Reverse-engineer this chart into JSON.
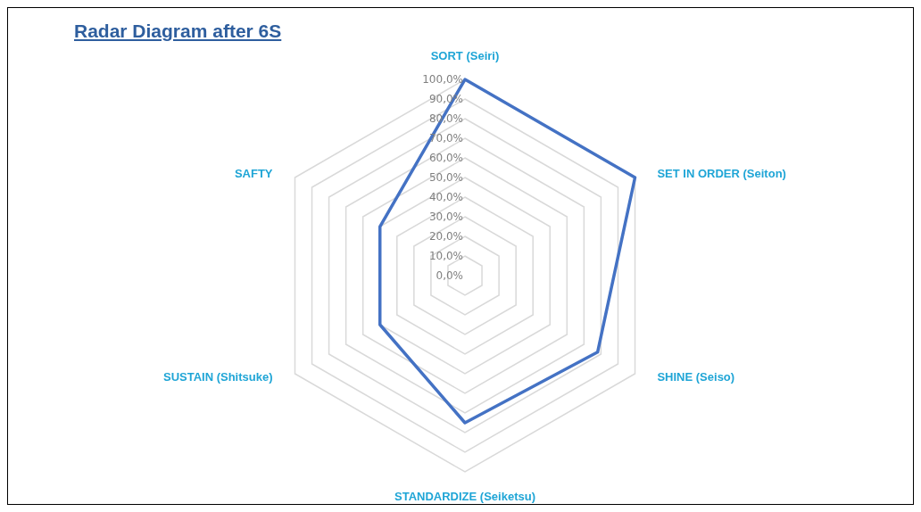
{
  "chart_data": {
    "type": "radar",
    "title": "Radar Diagram after 6S",
    "categories": [
      "SORT (Seiri)",
      "SET IN ORDER  (Seiton)",
      "SHINE (Seiso)",
      "STANDARDIZE (Seiketsu)",
      "SUSTAIN (Shitsuke)",
      "SAFTY"
    ],
    "series": [
      {
        "color": "#4472c4",
        "values": [
          100,
          100,
          78,
          75,
          50,
          50
        ]
      }
    ],
    "ylim": [
      0,
      100
    ],
    "yticks": [
      {
        "value": 0,
        "label": "0,0%"
      },
      {
        "value": 10,
        "label": "10,0%"
      },
      {
        "value": 20,
        "label": "20,0%"
      },
      {
        "value": 30,
        "label": "30,0%"
      },
      {
        "value": 40,
        "label": "40,0%"
      },
      {
        "value": 50,
        "label": "50,0%"
      },
      {
        "value": 60,
        "label": "60,0%"
      },
      {
        "value": 70,
        "label": "70,0%"
      },
      {
        "value": 80,
        "label": "80,0%"
      },
      {
        "value": 90,
        "label": "90,0%"
      },
      {
        "value": 100,
        "label": "100,0%"
      }
    ],
    "grid": true,
    "marker": "none",
    "line_style": "solid"
  }
}
